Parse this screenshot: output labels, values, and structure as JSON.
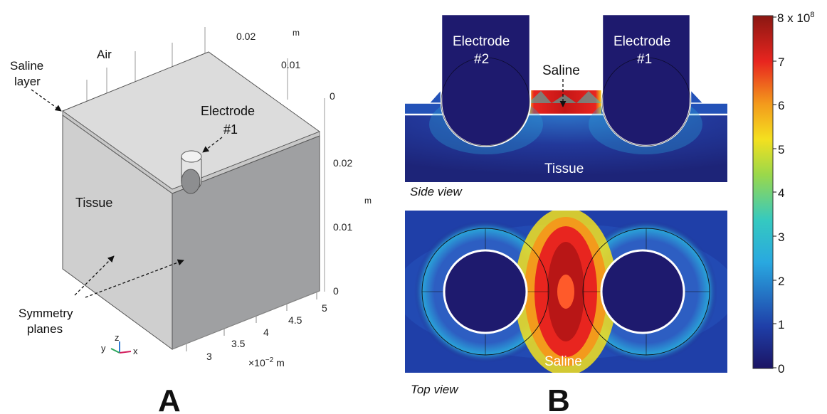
{
  "panel_a": {
    "letter": "A",
    "labels": {
      "saline_layer_1": "Saline",
      "saline_layer_2": "layer",
      "air": "Air",
      "electrode_1": "Electrode",
      "electrode_2": "#1",
      "tissue": "Tissue",
      "symmetry_1": "Symmetry",
      "symmetry_2": "planes"
    },
    "axis_top": {
      "ticks": [
        "0.02",
        "0.01",
        "0"
      ],
      "unit": "m"
    },
    "axis_right": {
      "ticks": [
        "0.02",
        "0.01",
        "0"
      ],
      "unit": "m"
    },
    "axis_bottom": {
      "ticks": [
        "3",
        "3.5",
        "4",
        "4.5",
        "5"
      ],
      "scale": "×10",
      "scale_exp": "−2",
      "unit": "m"
    },
    "triad": {
      "y": "y",
      "z": "z",
      "x": "x"
    }
  },
  "panel_b": {
    "letter": "B",
    "side_view": {
      "caption": "Side view",
      "electrode_left_1": "Electrode",
      "electrode_left_2": "#2",
      "electrode_right_1": "Electrode",
      "electrode_right_2": "#1",
      "saline": "Saline",
      "tissue": "Tissue"
    },
    "top_view": {
      "caption": "Top view",
      "saline": "Saline"
    },
    "colorbar": {
      "max_label_base": "8 x 10",
      "max_label_exp": "8",
      "ticks": [
        "7",
        "6",
        "5",
        "4",
        "3",
        "2",
        "1",
        "0"
      ],
      "colors": [
        "#1b1464",
        "#1f3fa8",
        "#29a8e0",
        "#35c9c0",
        "#9bd84a",
        "#f4e01f",
        "#f39a1c",
        "#e8251f",
        "#8a1712"
      ]
    }
  }
}
